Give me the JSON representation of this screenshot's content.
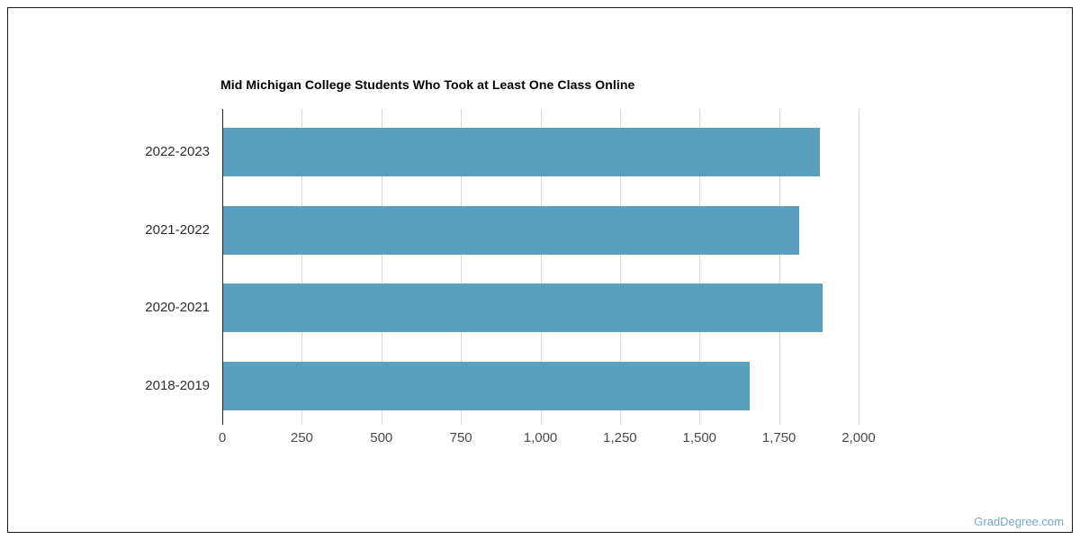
{
  "page": {
    "background": "#ffffff",
    "border_color": "#1c1c1c",
    "watermark": "GradDegree.com",
    "watermark_color": "#74a9c7"
  },
  "chart_data": {
    "type": "bar",
    "orientation": "horizontal",
    "title": "Mid Michigan College Students Who Took at Least One Class Online",
    "categories": [
      "2022-2023",
      "2021-2022",
      "2020-2021",
      "2018-2019"
    ],
    "values": [
      1875,
      1810,
      1885,
      1655
    ],
    "xlabel": "",
    "ylabel": "",
    "xlim": [
      0,
      2000
    ],
    "xticks": [
      0,
      250,
      500,
      750,
      1000,
      1250,
      1500,
      1750,
      2000
    ],
    "xtick_labels": [
      "0",
      "250",
      "500",
      "750",
      "1,000",
      "1,250",
      "1,500",
      "1,750",
      "2,000"
    ],
    "grid": true,
    "legend": false,
    "bar_color": "#5a9fbc",
    "axis_color": "#262626",
    "gridline_color": "#d8d8d8"
  }
}
